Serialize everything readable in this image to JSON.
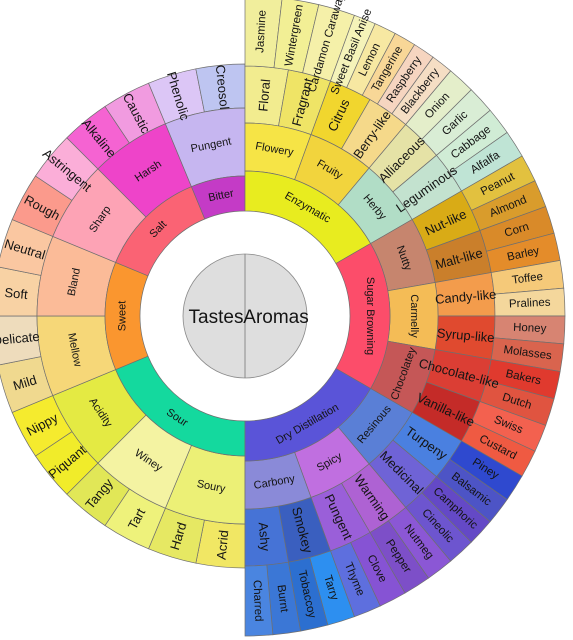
{
  "center": {
    "tastes": "Tastes",
    "aromas": "Aromas"
  },
  "tastes": {
    "groups": [
      {
        "name": "Sour",
        "color": "#14d99e",
        "subs": [
          {
            "name": "Soury",
            "color": "#ecf076",
            "leaves": [
              {
                "name": "Acrid",
                "color": "#f1e764"
              },
              {
                "name": "Hard",
                "color": "#e6e863"
              }
            ]
          },
          {
            "name": "Winey",
            "color": "#f4f3a2",
            "leaves": [
              {
                "name": "Tart",
                "color": "#eef27b"
              },
              {
                "name": "Tangy",
                "color": "#e1e757"
              }
            ]
          },
          {
            "name": "Acidity",
            "color": "#e4ea43",
            "leaves": [
              {
                "name": "Piquant",
                "color": "#f1ec2a"
              },
              {
                "name": "Nippy",
                "color": "#f5eb2e"
              }
            ]
          }
        ]
      },
      {
        "name": "Sweet",
        "color": "#fa962f",
        "subs": [
          {
            "name": "Mellow",
            "color": "#f6d778",
            "leaves": [
              {
                "name": "Mild",
                "color": "#f0d98f"
              },
              {
                "name": "Delicate",
                "color": "#eedcbc"
              }
            ]
          },
          {
            "name": "Bland",
            "color": "#fbbb98",
            "leaves": [
              {
                "name": "Soft",
                "color": "#f8d2a4"
              },
              {
                "name": "Neutral",
                "color": "#fac7a1"
              }
            ]
          }
        ]
      },
      {
        "name": "Salt",
        "color": "#fa6374",
        "subs": [
          {
            "name": "Sharp",
            "color": "#fda3b5",
            "leaves": [
              {
                "name": "Rough",
                "color": "#fb9a8c"
              },
              {
                "name": "Astringent",
                "color": "#fbaed8"
              }
            ]
          },
          {
            "name": "Harsh",
            "color": "#ee44c9",
            "leaves": [
              {
                "name": "Alkaline",
                "color": "#f563d2"
              },
              {
                "name": "Caustic",
                "color": "#f19be0"
              }
            ]
          }
        ]
      },
      {
        "name": "Bitter",
        "color": "#c43bc6",
        "subs": [
          {
            "name": "Pungent",
            "color": "#c6b6f0",
            "leaves": [
              {
                "name": "Phenolic",
                "color": "#dcc6f6"
              },
              {
                "name": "Creosol",
                "color": "#bec5f1"
              }
            ]
          }
        ]
      }
    ]
  },
  "aromas": {
    "groups": [
      {
        "name": "Enzymatic",
        "color": "#e8ec1f",
        "subs": [
          {
            "name": "Flowery",
            "color": "#f6e446",
            "leaves": [
              {
                "name": "Floral",
                "color": "#f2ec8f"
              },
              {
                "name": "Fragrant",
                "color": "#efe466"
              }
            ],
            "outer": [
              {
                "name": "Jasmine",
                "color": "#f1ee9c"
              },
              {
                "name": "Wintergreen",
                "color": "#f2ef95"
              },
              {
                "name": "Cardamon Caraway",
                "color": "#f5f0a9"
              }
            ]
          },
          {
            "name": "Fruity",
            "color": "#f2d43d",
            "leaves": [
              {
                "name": "Citrus",
                "color": "#f1d62e"
              },
              {
                "name": "Berry-like",
                "color": "#f5d98a"
              }
            ],
            "outer": [
              {
                "name": "Sweet Basil Anise",
                "color": "#f5f3b9"
              },
              {
                "name": "Lemon",
                "color": "#f7e8a2"
              },
              {
                "name": "Tangerine",
                "color": "#f8d797"
              },
              {
                "name": "Raspberry",
                "color": "#f6d5c0"
              },
              {
                "name": "Blackberry",
                "color": "#f5dec4"
              }
            ]
          },
          {
            "name": "Herby",
            "color": "#b1ddc6",
            "leaves": [
              {
                "name": "Alliaceous",
                "color": "#e5e2a6"
              },
              {
                "name": "Leguminous",
                "color": "#c3e2cf"
              }
            ],
            "outer": [
              {
                "name": "Onion",
                "color": "#e4eeca"
              },
              {
                "name": "Garlic",
                "color": "#d9edd5"
              },
              {
                "name": "Cabbage",
                "color": "#d0ecd5"
              },
              {
                "name": "Alfalfa",
                "color": "#bfe4d5"
              }
            ]
          }
        ]
      },
      {
        "name": "Sugar Browning",
        "color": "#fc4d6a",
        "subs": [
          {
            "name": "Nutty",
            "color": "#c6856e",
            "leaves": [
              {
                "name": "Nut-like",
                "color": "#d9ab16"
              },
              {
                "name": "Malt-like",
                "color": "#ca7f2b"
              }
            ],
            "outer": [
              {
                "name": "Peanut",
                "color": "#e2c13f"
              },
              {
                "name": "Almond",
                "color": "#d99c2c"
              },
              {
                "name": "Corn",
                "color": "#d98a29"
              },
              {
                "name": "Barley",
                "color": "#e48c2a"
              }
            ]
          },
          {
            "name": "Carmelly",
            "color": "#f4bc56",
            "leaves": [
              {
                "name": "Candy-like",
                "color": "#f39c4c"
              },
              {
                "name": "Syrup-like",
                "color": "#e04a2f"
              }
            ],
            "outer": [
              {
                "name": "Toffee",
                "color": "#f5c979"
              },
              {
                "name": "Pralines",
                "color": "#f4d79c"
              },
              {
                "name": "Honey",
                "color": "#d78472"
              },
              {
                "name": "Molasses",
                "color": "#d9644e"
              }
            ]
          },
          {
            "name": "Chocolatey",
            "color": "#c55757",
            "leaves": [
              {
                "name": "Chocolate-like",
                "color": "#db3e34"
              },
              {
                "name": "Vanilla-like",
                "color": "#c42b28"
              }
            ],
            "outer": [
              {
                "name": "Bakers",
                "color": "#e03a2e"
              },
              {
                "name": "Dutch",
                "color": "#e05440"
              },
              {
                "name": "Swiss",
                "color": "#f3614f"
              },
              {
                "name": "Custard",
                "color": "#ef5a42"
              }
            ]
          }
        ]
      },
      {
        "name": "Dry Distillation",
        "color": "#5a54d8",
        "subs": [
          {
            "name": "Resinous",
            "color": "#5a7fd6",
            "leaves": [
              {
                "name": "Turpeny",
                "color": "#4a80e0"
              },
              {
                "name": "Medicinal",
                "color": "#6f63d6"
              }
            ],
            "outer": [
              {
                "name": "Piney",
                "color": "#2f49cf"
              },
              {
                "name": "Balsamic",
                "color": "#4d54c6"
              },
              {
                "name": "Camphoric",
                "color": "#6449c6"
              },
              {
                "name": "Cineolic",
                "color": "#6d55cf"
              }
            ]
          },
          {
            "name": "Spicy",
            "color": "#c06fe0",
            "leaves": [
              {
                "name": "Warming",
                "color": "#ae62d3"
              },
              {
                "name": "Pungent",
                "color": "#9a5fd9"
              }
            ],
            "outer": [
              {
                "name": "Nutmeg",
                "color": "#8b57d5"
              },
              {
                "name": "Pepper",
                "color": "#7d4fc8"
              },
              {
                "name": "Clove",
                "color": "#8653d4"
              },
              {
                "name": "Thyme",
                "color": "#5e6fde"
              }
            ]
          },
          {
            "name": "Carbony",
            "color": "#8a8ad8",
            "leaves": [
              {
                "name": "Smokey",
                "color": "#3a5fbf"
              },
              {
                "name": "Ashy",
                "color": "#4673d6"
              }
            ],
            "outer": [
              {
                "name": "Tarry",
                "color": "#2d8ff0"
              },
              {
                "name": "Tobaccoy",
                "color": "#2c6fd0"
              },
              {
                "name": "Burnt",
                "color": "#3b77d6"
              },
              {
                "name": "Charred",
                "color": "#4a85e0"
              }
            ]
          }
        ]
      }
    ]
  }
}
